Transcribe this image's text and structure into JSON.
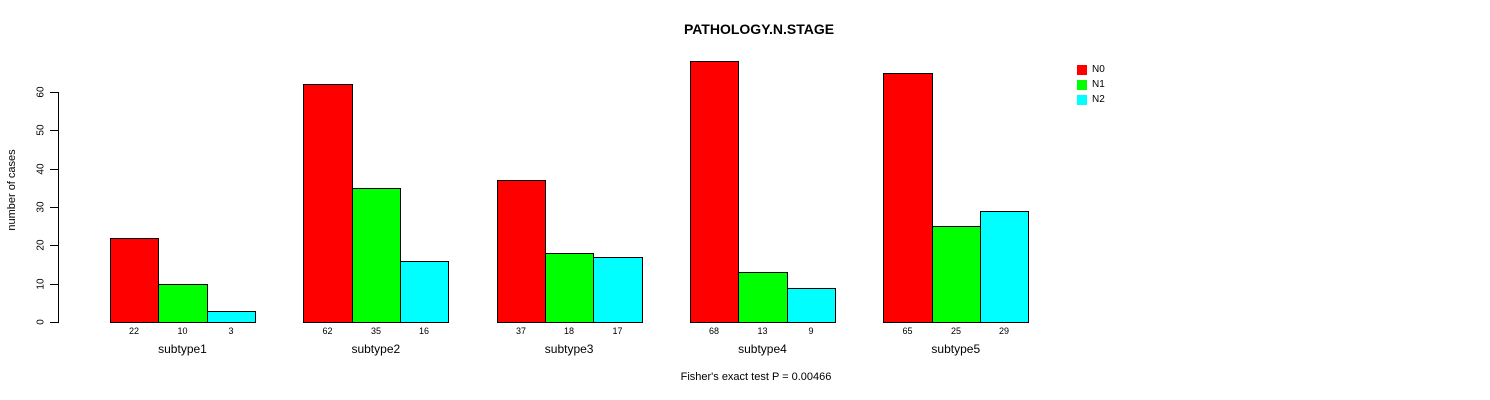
{
  "title": "PATHOLOGY.N.STAGE",
  "caption": "Fisher's exact test P = 0.00466",
  "y_axis_label": "number of cases",
  "colors": {
    "n0": "#FF0000",
    "n1": "#00FF00",
    "n2": "#00FFFF",
    "axis": "#000000",
    "background": "#FFFFFF"
  },
  "chart_data": {
    "type": "bar",
    "title": "PATHOLOGY.N.STAGE",
    "xlabel": "",
    "ylabel": "number of cases",
    "categories": [
      "subtype1",
      "subtype2",
      "subtype3",
      "subtype4",
      "subtype5"
    ],
    "series": [
      {
        "name": "N0",
        "color": "#FF0000",
        "values": [
          22,
          62,
          37,
          68,
          65
        ]
      },
      {
        "name": "N1",
        "color": "#00FF00",
        "values": [
          10,
          35,
          18,
          13,
          25
        ]
      },
      {
        "name": "N2",
        "color": "#00FFFF",
        "values": [
          3,
          16,
          17,
          9,
          29
        ]
      }
    ],
    "bar_value_labels": [
      [
        "22",
        "10",
        "3"
      ],
      [
        "62",
        "35",
        "16"
      ],
      [
        "37",
        "18",
        "17"
      ],
      [
        "68",
        "13",
        "9"
      ],
      [
        "65",
        "25",
        "29"
      ]
    ],
    "yticks": [
      0,
      10,
      20,
      30,
      40,
      50,
      60
    ],
    "ylim": [
      0,
      70
    ],
    "grid": false,
    "legend_position": "top-right",
    "legend": [
      "N0",
      "N1",
      "N2"
    ],
    "annotation": "Fisher's exact test P = 0.00466"
  }
}
